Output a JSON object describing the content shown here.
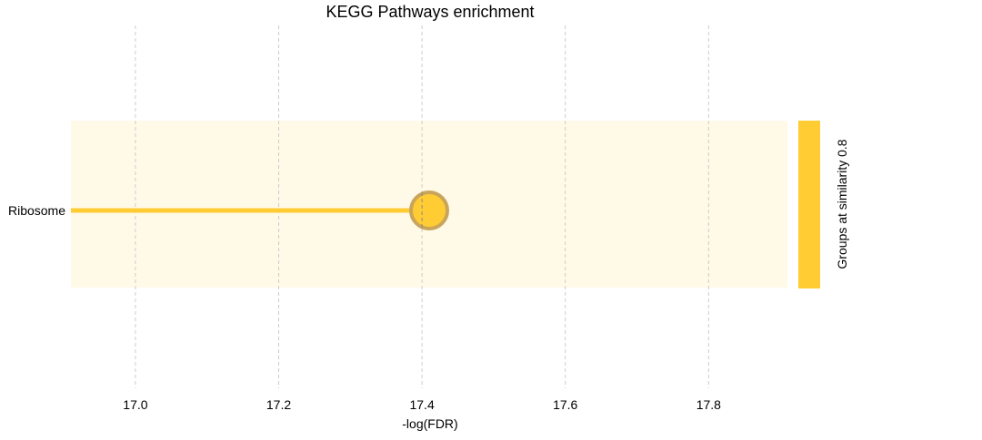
{
  "chart_data": {
    "type": "lollipop",
    "title": "KEGG Pathways enrichment",
    "xlabel": "-log(FDR)",
    "ylabel": "",
    "xlim": [
      16.91,
      17.91
    ],
    "xticks": [
      17.0,
      17.2,
      17.4,
      17.6,
      17.8
    ],
    "xtick_labels": [
      "17.0",
      "17.2",
      "17.4",
      "17.6",
      "17.8"
    ],
    "grid": "vertical dashed",
    "categories": [
      "Ribosome"
    ],
    "values": [
      17.41
    ],
    "group_label": "Groups at similarity 0.8",
    "colors": {
      "stem": "#ffcc33",
      "marker_fill": "#ffcc33",
      "marker_edge": "#c9a55b",
      "band": "#fff9e8",
      "group_bar": "#ffcc33",
      "grid": "#cccccc"
    }
  }
}
